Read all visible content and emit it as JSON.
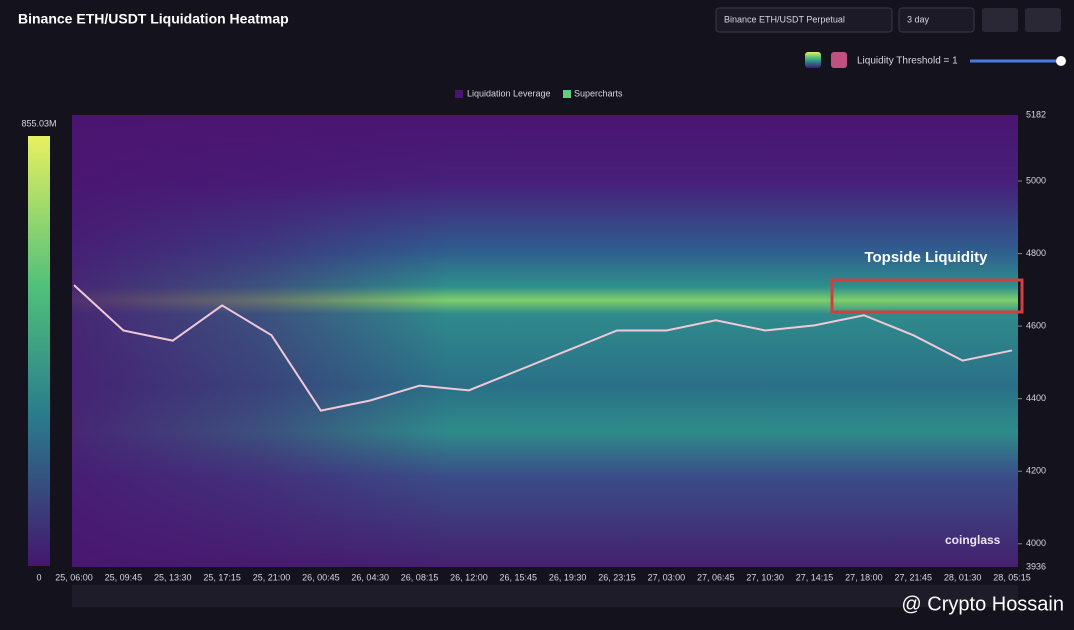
{
  "header": {
    "title": "Binance ETH/USDT Liquidation Heatmap",
    "pair_select": "Binance ETH/USDT Perpetual",
    "range_select": "3 day",
    "threshold_label": "Liquidity Threshold = 1"
  },
  "legend": [
    "Liquidation Leverage",
    "Supercharts"
  ],
  "chart_data": {
    "type": "heatmap",
    "categories": [
      "25, 06:00",
      "25, 09:45",
      "25, 13:30",
      "25, 17:15",
      "25, 21:00",
      "26, 00:45",
      "26, 04:30",
      "26, 08:15",
      "26, 12:00",
      "26, 15:45",
      "26, 19:30",
      "26, 23:15",
      "27, 03:00",
      "27, 06:45",
      "27, 10:30",
      "27, 14:15",
      "27, 18:00",
      "27, 21:45",
      "28, 01:30",
      "28, 05:15"
    ],
    "values": [
      4713,
      4588,
      4560,
      4657,
      4575,
      4367,
      4395,
      4436,
      4423,
      4478,
      4533,
      4588,
      4588,
      4616,
      4588,
      4602,
      4630,
      4575,
      4505,
      4533
    ],
    "color": "#f0c8d8",
    "ylim": [
      3936,
      5182
    ],
    "yticks": [
      4000,
      4200,
      4400,
      4600,
      4800,
      5000
    ],
    "colorbar": {
      "max": "855.03M",
      "min": 0
    },
    "annotation": "Topside Liquidity"
  },
  "watermarks": [
    "coinglass",
    "@ Crypto Hossain"
  ]
}
